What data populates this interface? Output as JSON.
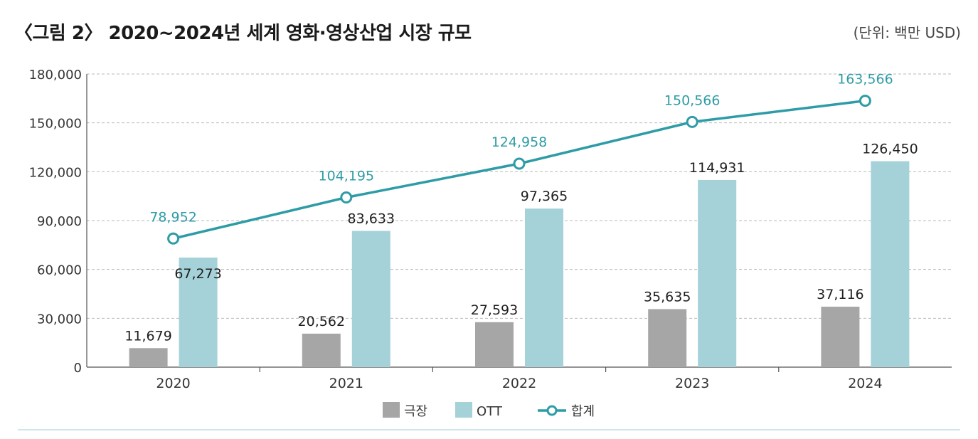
{
  "title": "〈그림 2〉 2020~2024년 세계 영화·영상산업 시장 규모",
  "unit_label": "(단위: 백만 USD)",
  "colors": {
    "theater": "#a6a6a6",
    "ott": "#a4d2d8",
    "total": "#2e9ca6",
    "label_dark": "#1f1f1f",
    "label_teal": "#2e9ca6"
  },
  "chart_data": {
    "type": "bar",
    "categories": [
      "2020",
      "2021",
      "2022",
      "2023",
      "2024"
    ],
    "series": [
      {
        "name": "극장",
        "kind": "bar",
        "values": [
          11679,
          20562,
          27593,
          35635,
          37116
        ],
        "labels": [
          "11,679",
          "20,562",
          "27,593",
          "35,635",
          "37,116"
        ]
      },
      {
        "name": "OTT",
        "kind": "bar",
        "values": [
          67273,
          83633,
          97365,
          114931,
          126450
        ],
        "labels": [
          "67,273",
          "83,633",
          "97,365",
          "114,931",
          "126,450"
        ]
      },
      {
        "name": "합계",
        "kind": "line",
        "values": [
          78952,
          104195,
          124958,
          150566,
          163566
        ],
        "labels": [
          "78,952",
          "104,195",
          "124,958",
          "150,566",
          "163,566"
        ]
      }
    ],
    "yticks": [
      0,
      30000,
      60000,
      90000,
      120000,
      150000,
      180000
    ],
    "ytick_labels": [
      "0",
      "30,000",
      "60,000",
      "90,000",
      "120,000",
      "150,000",
      "180,000"
    ],
    "ylim": [
      0,
      180000
    ],
    "grid": true,
    "legend": "bottom-center"
  }
}
